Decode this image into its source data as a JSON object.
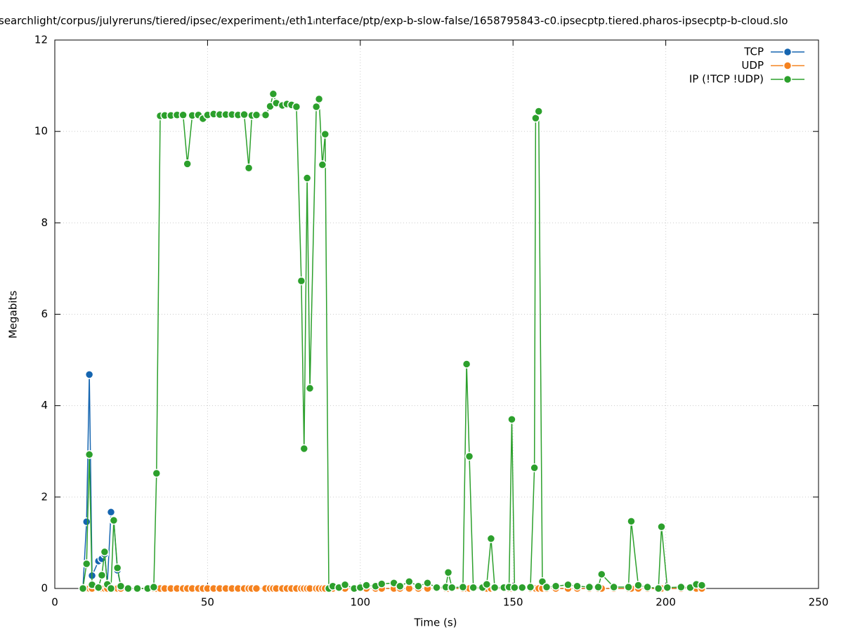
{
  "chart_data": {
    "type": "line",
    "title": "searchlight/corpus/julyreruns/tiered/ipsec/experiment₁/eth1ᵢnterface/ptp/exp-b-slow-false/1658795843-c0.ipsecptp.tiered.pharos-ipsecptp-b-cloud.slo",
    "x_label": "Time (s)",
    "y_label": "Megabits",
    "xlim": [
      0,
      250
    ],
    "xticks": [
      0,
      50,
      100,
      150,
      200,
      250
    ],
    "ylim": [
      0,
      12
    ],
    "yticks": [
      0,
      2,
      4,
      6,
      8,
      10,
      12
    ],
    "grid": true,
    "legend": "upper right",
    "x": [
      9.2,
      10.4,
      11.3,
      12.2,
      14.3,
      15.4,
      16.3,
      17.2,
      18.4,
      19.3,
      20.5,
      21.6,
      24,
      27,
      30.4,
      32.4,
      33.3,
      34.5,
      36,
      38,
      40,
      42,
      43.4,
      45,
      47,
      48.5,
      50,
      52,
      54,
      56,
      58,
      60,
      62,
      63.5,
      64.5,
      66,
      69,
      70.5,
      71.5,
      72.5,
      74.5,
      76,
      77.5,
      79.1,
      80.7,
      81.6,
      82.6,
      83.5,
      85.6,
      86.5,
      87.6,
      88.5,
      89.7,
      91,
      93,
      95,
      98,
      100,
      102,
      105,
      107,
      111,
      113,
      116,
      119,
      122,
      125,
      128,
      128.8,
      130,
      133.6,
      134.8,
      135.7,
      137,
      140,
      141.4,
      142.8,
      144,
      147,
      148.7,
      149.6,
      150.5,
      153,
      155.7,
      157,
      157.4,
      158.4,
      159.6,
      161,
      164,
      168,
      171,
      175,
      177.9,
      179,
      183,
      187.8,
      188.7,
      191,
      194,
      197.6,
      198.6,
      200.5,
      205,
      208,
      210,
      211.8
    ],
    "series": [
      {
        "name": "TCP",
        "color": "#1565b0",
        "values": [
          0,
          1.46,
          4.68,
          0.28,
          0.6,
          0.65,
          0.75,
          0.1,
          1.67,
          1.49,
          0.4,
          0.05,
          0,
          0,
          0,
          0,
          0,
          0,
          0,
          0,
          0,
          0,
          0,
          0,
          0,
          0,
          0,
          0,
          0,
          0,
          0,
          0,
          0,
          0,
          0,
          0,
          0,
          0,
          0,
          0,
          0,
          0,
          0,
          0,
          0,
          0,
          0,
          0,
          0,
          0,
          0,
          0,
          0,
          0,
          0,
          0,
          0,
          0,
          0,
          0,
          0,
          0,
          0,
          0,
          0,
          0,
          0,
          0,
          0,
          0,
          0,
          0,
          0,
          0,
          0,
          0,
          0,
          0,
          0,
          0,
          0,
          0,
          0,
          0,
          0,
          0,
          0,
          0,
          0,
          0,
          0,
          0,
          0,
          0,
          0,
          0,
          0,
          0,
          0,
          0,
          0,
          0,
          0,
          0,
          0,
          0,
          0
        ]
      },
      {
        "name": "UDP",
        "color": "#f5821f",
        "values": [
          0,
          0,
          0,
          0,
          0,
          0,
          0,
          0,
          0,
          0,
          0,
          0,
          0,
          0,
          0,
          0,
          0,
          0,
          0,
          0,
          0,
          0,
          0,
          0,
          0,
          0,
          0,
          0,
          0,
          0,
          0,
          0,
          0,
          0,
          0,
          0,
          0,
          0,
          0,
          0,
          0,
          0,
          0,
          0,
          0,
          0,
          0,
          0,
          0,
          0,
          0,
          0,
          0,
          0,
          0,
          0,
          0,
          0,
          0,
          0,
          0,
          0,
          0,
          0,
          0,
          0,
          0,
          0,
          0,
          0,
          0,
          0,
          0,
          0,
          0,
          0,
          0,
          0,
          0,
          0,
          0,
          0,
          0,
          0,
          0,
          0,
          0,
          0,
          0,
          0,
          0,
          0,
          0,
          0,
          0,
          0,
          0,
          0,
          0,
          0,
          0,
          0,
          0,
          0,
          0,
          0,
          0
        ]
      },
      {
        "name": "IP (!TCP  !UDP)",
        "color": "#2ca02c",
        "values": [
          0,
          0.54,
          2.93,
          0.08,
          0.02,
          0.29,
          0.8,
          0.09,
          0,
          1.49,
          0.45,
          0.05,
          0,
          0,
          0,
          0.03,
          2.52,
          10.34,
          10.35,
          10.35,
          10.36,
          10.36,
          9.29,
          10.35,
          10.36,
          10.28,
          10.36,
          10.38,
          10.37,
          10.37,
          10.37,
          10.36,
          10.37,
          9.2,
          10.35,
          10.36,
          10.36,
          10.55,
          10.82,
          10.62,
          10.57,
          10.6,
          10.58,
          10.54,
          6.73,
          3.06,
          8.98,
          4.38,
          10.54,
          10.71,
          9.27,
          9.94,
          0,
          0.05,
          0.02,
          0.08,
          0,
          0.02,
          0.07,
          0.05,
          0.1,
          0.12,
          0.05,
          0.15,
          0.05,
          0.12,
          0.02,
          0.03,
          0.35,
          0.02,
          0.03,
          4.91,
          2.89,
          0.02,
          0.02,
          0.09,
          1.09,
          0.02,
          0.02,
          0.03,
          3.7,
          0.02,
          0.02,
          0.03,
          2.64,
          10.29,
          10.44,
          0.15,
          0.03,
          0.05,
          0.08,
          0.05,
          0.03,
          0.03,
          0.31,
          0.03,
          0.03,
          1.47,
          0.07,
          0.03,
          0,
          1.35,
          0.02,
          0.03,
          0.02,
          0.09,
          0.07
        ]
      }
    ]
  }
}
